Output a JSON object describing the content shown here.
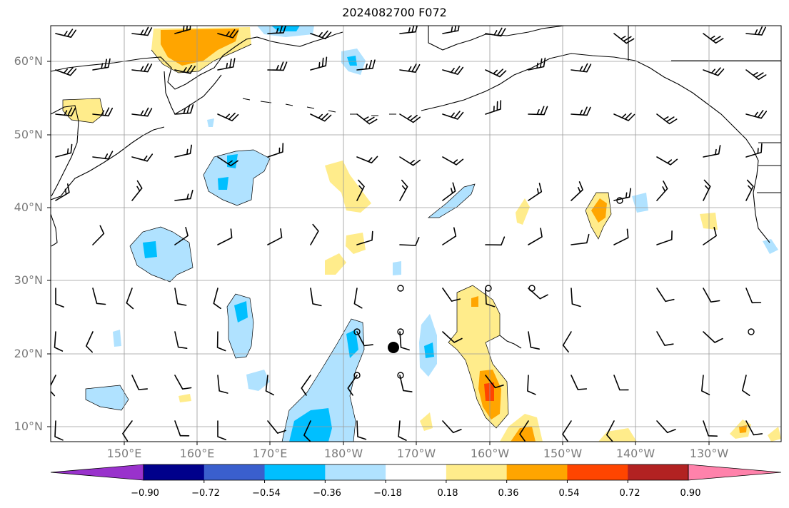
{
  "title": "2024082700 F072",
  "lat_labels": [
    "60°N",
    "50°N",
    "40°N",
    "30°N",
    "20°N",
    "10°N"
  ],
  "lon_labels": [
    "150°E",
    "160°E",
    "170°E",
    "180°W",
    "170°W",
    "160°W",
    "150°W",
    "140°W",
    "130°W"
  ],
  "colorbar": {
    "ticks": [
      "−0.90",
      "−0.72",
      "−0.54",
      "−0.36",
      "−0.18",
      "0.18",
      "0.36",
      "0.54",
      "0.72",
      "0.90"
    ],
    "colors": [
      "#9932cc",
      "#00008b",
      "#3a5fcd",
      "#00bfff",
      "#b0e2ff",
      "#ffffff",
      "#ffec8b",
      "#ffa500",
      "#ff4500",
      "#b22222",
      "#ff82ab"
    ]
  },
  "fill_colors": {
    "light_blue": "#b0e2ff",
    "blue": "#00bfff",
    "light_yellow": "#ffec8b",
    "orange": "#ffa500",
    "red_orange": "#ff4500"
  }
}
